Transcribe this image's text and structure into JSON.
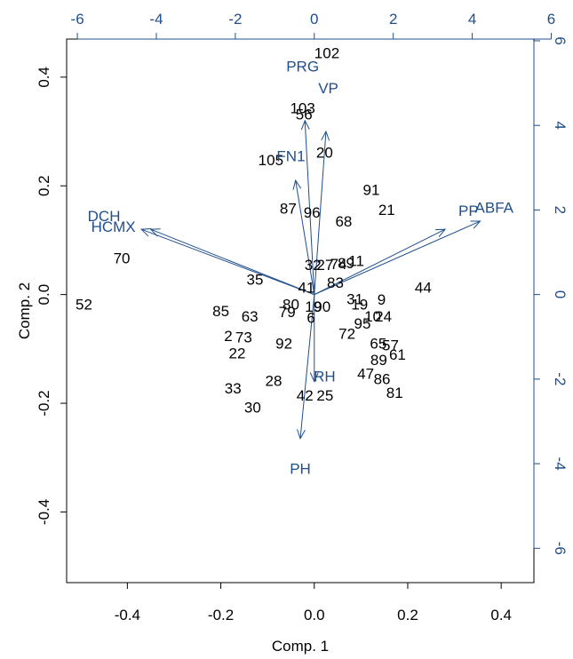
{
  "chart_data": {
    "type": "scatter",
    "subtype": "biplot",
    "title": "",
    "xlabel": "Comp. 1",
    "ylabel": "Comp. 2",
    "xlim": [
      -0.53,
      0.47
    ],
    "ylim": [
      -0.53,
      0.47
    ],
    "x_ticks": [
      -0.4,
      -0.2,
      0.0,
      0.2,
      0.4
    ],
    "y_ticks": [
      -0.4,
      -0.2,
      0.0,
      0.2,
      0.4
    ],
    "tick_labels_primary": [
      "-0.4",
      "-0.2",
      "0.0",
      "0.2",
      "0.4"
    ],
    "secondary_axes": {
      "ticks": [
        -6,
        -4,
        -2,
        0,
        2,
        4,
        6
      ],
      "labels": [
        "-6",
        "-4",
        "-2",
        "0",
        "2",
        "4",
        "6"
      ],
      "zero_top_x": 0.0,
      "zero_right_y": 0.0,
      "top_scale_per_unit": 0.0845,
      "right_scale_per_unit": 0.0778,
      "color": "#1f4e8c"
    },
    "observations": [
      {
        "label": "102",
        "x": 0.027,
        "y": 0.445
      },
      {
        "label": "103",
        "x": -0.025,
        "y": 0.343
      },
      {
        "label": "56",
        "x": -0.022,
        "y": 0.332
      },
      {
        "label": "20",
        "x": 0.022,
        "y": 0.262
      },
      {
        "label": "105",
        "x": -0.093,
        "y": 0.248
      },
      {
        "label": "91",
        "x": 0.122,
        "y": 0.193
      },
      {
        "label": "21",
        "x": 0.155,
        "y": 0.156
      },
      {
        "label": "87",
        "x": -0.056,
        "y": 0.159
      },
      {
        "label": "96",
        "x": -0.005,
        "y": 0.151
      },
      {
        "label": "68",
        "x": 0.063,
        "y": 0.135
      },
      {
        "label": "32",
        "x": -0.003,
        "y": 0.055
      },
      {
        "label": "27",
        "x": 0.023,
        "y": 0.055
      },
      {
        "label": "74",
        "x": 0.052,
        "y": 0.057
      },
      {
        "label": "89",
        "x": 0.068,
        "y": 0.058
      },
      {
        "label": "11",
        "x": 0.09,
        "y": 0.062
      },
      {
        "label": "83",
        "x": 0.045,
        "y": 0.022
      },
      {
        "label": "35",
        "x": -0.127,
        "y": 0.028
      },
      {
        "label": "41",
        "x": -0.017,
        "y": 0.013
      },
      {
        "label": "44",
        "x": 0.233,
        "y": 0.013
      },
      {
        "label": "31",
        "x": 0.087,
        "y": -0.008
      },
      {
        "label": "9",
        "x": 0.144,
        "y": -0.009
      },
      {
        "label": "19",
        "x": 0.097,
        "y": -0.018
      },
      {
        "label": "80",
        "x": -0.05,
        "y": -0.018
      },
      {
        "label": "19",
        "x": -0.002,
        "y": -0.022
      },
      {
        "label": "90",
        "x": 0.017,
        "y": -0.022
      },
      {
        "label": "52",
        "x": -0.493,
        "y": -0.018
      },
      {
        "label": "85",
        "x": -0.2,
        "y": -0.03
      },
      {
        "label": "79",
        "x": -0.058,
        "y": -0.032
      },
      {
        "label": "6",
        "x": -0.007,
        "y": -0.042
      },
      {
        "label": "10",
        "x": 0.125,
        "y": -0.04
      },
      {
        "label": "24",
        "x": 0.148,
        "y": -0.04
      },
      {
        "label": "63",
        "x": -0.138,
        "y": -0.04
      },
      {
        "label": "95",
        "x": 0.103,
        "y": -0.053
      },
      {
        "label": "72",
        "x": 0.07,
        "y": -0.072
      },
      {
        "label": "2",
        "x": -0.184,
        "y": -0.076
      },
      {
        "label": "73",
        "x": -0.151,
        "y": -0.078
      },
      {
        "label": "92",
        "x": -0.065,
        "y": -0.09
      },
      {
        "label": "65",
        "x": 0.137,
        "y": -0.09
      },
      {
        "label": "57",
        "x": 0.163,
        "y": -0.093
      },
      {
        "label": "61",
        "x": 0.178,
        "y": -0.11
      },
      {
        "label": "22",
        "x": -0.165,
        "y": -0.108
      },
      {
        "label": "89",
        "x": 0.138,
        "y": -0.12
      },
      {
        "label": "47",
        "x": 0.11,
        "y": -0.145
      },
      {
        "label": "86",
        "x": 0.145,
        "y": -0.155
      },
      {
        "label": "28",
        "x": -0.087,
        "y": -0.158
      },
      {
        "label": "33",
        "x": -0.174,
        "y": -0.172
      },
      {
        "label": "81",
        "x": 0.172,
        "y": -0.18
      },
      {
        "label": "42",
        "x": -0.02,
        "y": -0.185
      },
      {
        "label": "25",
        "x": 0.023,
        "y": -0.185
      },
      {
        "label": "30",
        "x": -0.132,
        "y": -0.207
      },
      {
        "label": "70",
        "x": -0.412,
        "y": 0.067
      }
    ],
    "variables": [
      {
        "name": "PRG",
        "x": -0.02,
        "y": 0.32,
        "label_x": -0.025,
        "label_y": 0.42
      },
      {
        "name": "VP",
        "x": 0.025,
        "y": 0.3,
        "label_x": 0.03,
        "label_y": 0.38
      },
      {
        "name": "FN1",
        "x": -0.04,
        "y": 0.21,
        "label_x": -0.05,
        "label_y": 0.255
      },
      {
        "name": "DCH",
        "x": -0.35,
        "y": 0.12,
        "label_x": -0.45,
        "label_y": 0.145
      },
      {
        "name": "HCMX",
        "x": -0.37,
        "y": 0.12,
        "label_x": -0.43,
        "label_y": 0.125
      },
      {
        "name": "PP",
        "x": 0.28,
        "y": 0.12,
        "label_x": 0.33,
        "label_y": 0.155
      },
      {
        "name": "ABFA",
        "x": 0.355,
        "y": 0.135,
        "label_x": 0.385,
        "label_y": 0.16
      },
      {
        "name": "RH",
        "x": 0.0,
        "y": -0.16,
        "label_x": 0.022,
        "label_y": -0.15
      },
      {
        "name": "PH",
        "x": -0.03,
        "y": -0.265,
        "label_x": -0.03,
        "label_y": -0.32
      }
    ],
    "grid": false,
    "legend": "none"
  }
}
